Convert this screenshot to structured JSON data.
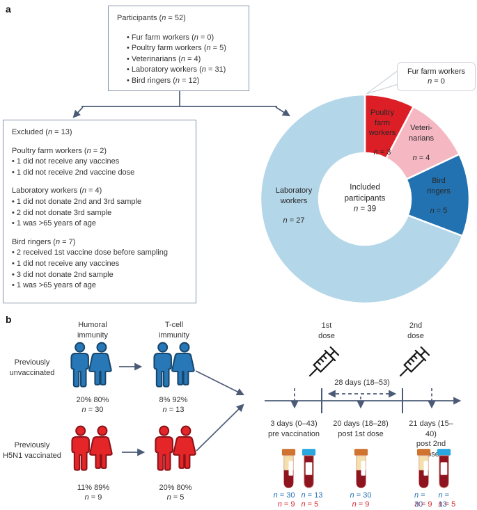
{
  "panel_a": {
    "label": "a",
    "participants_box": {
      "title": "Participants (n = 52)",
      "items": [
        "• Fur farm workers (n = 0)",
        "• Poultry farm workers (n = 5)",
        "• Veterinarians (n = 4)",
        "• Laboratory workers (n = 31)",
        "• Bird ringers (n = 12)"
      ]
    },
    "excluded_box": {
      "title": "Excluded (n = 13)",
      "groups": [
        {
          "heading": "Poultry farm workers (n = 2)",
          "bullets": [
            "• 1 did not receive any vaccines",
            "• 1 did not receive 2nd vaccine dose"
          ]
        },
        {
          "heading": "Laboratory workers (n = 4)",
          "bullets": [
            "• 1 did not donate 2nd and 3rd sample",
            "• 2 did not donate 3rd sample",
            "• 1 was >65 years of age"
          ]
        },
        {
          "heading": "Bird ringers (n = 7)",
          "bullets": [
            "• 2 received 1st vaccine dose before sampling",
            "• 1 did not receive any vaccines",
            "• 3 did not donate 2nd sample",
            "• 1 was >65 years of age"
          ]
        }
      ]
    }
  },
  "chart_data": {
    "type": "pie",
    "subtype": "donut",
    "title": "Included participants",
    "center_label": "Included\nparticipants\nn = 39",
    "total": 39,
    "direction": "clockwise",
    "start_angle_deg": 0,
    "slices": [
      {
        "label": "Poultry\nfarm\nworkers",
        "count_label": "n = 3",
        "value": 3,
        "color": "#dc1f26"
      },
      {
        "label": "Veteri-\nnarians",
        "count_label": "n = 4",
        "value": 4,
        "color": "#f5b8c3"
      },
      {
        "label": "Bird\nringers",
        "count_label": "n = 5",
        "value": 5,
        "color": "#2272b2"
      },
      {
        "label": "Laboratory\nworkers",
        "count_label": "n = 27",
        "value": 27,
        "color": "#b3d6e9"
      },
      {
        "label": "Fur farm workers",
        "count_label": "n = 0",
        "value": 0,
        "color": "#ffffff"
      }
    ]
  },
  "panel_b": {
    "label": "b",
    "col_headers": {
      "humoral": "Humoral\nimmunity",
      "tcell": "T-cell\nimmunity"
    },
    "rows": [
      {
        "row_label": "Previously\nunvaccinated",
        "color": "#2878b8",
        "humoral": {
          "pct": "20% 80%",
          "n": "n = 30"
        },
        "tcell": {
          "pct": "8% 92%",
          "n": "n = 13"
        }
      },
      {
        "row_label": "Previously\nH5N1 vaccinated",
        "color": "#e52629",
        "humoral": {
          "pct": "11% 89%",
          "n": "n = 9"
        },
        "tcell": {
          "pct": "20% 80%",
          "n": "n = 5"
        }
      }
    ],
    "timeline": {
      "dose1_label": "1st\ndose",
      "dose2_label": "2nd\ndose",
      "interval_label": "28 days (18–53)",
      "timepoints": [
        {
          "label": "3 days (0–43)\npre vaccination",
          "tubes": [
            "serum",
            "blood"
          ],
          "counts_unvaccinated": [
            "n = 30",
            "n = 13"
          ],
          "counts_vaccinated": [
            "n = 9",
            "n = 5"
          ]
        },
        {
          "label": "20 days (18–28)\npost 1st dose",
          "tubes": [
            "serum"
          ],
          "counts_unvaccinated": [
            "n = 30"
          ],
          "counts_vaccinated": [
            "n = 9"
          ]
        },
        {
          "label": "21 days (15–40)\npost 2nd dose",
          "tubes": [
            "serum",
            "blood"
          ],
          "counts_unvaccinated": [
            "n = 30",
            "n = 13"
          ],
          "counts_vaccinated": [
            "n = 9",
            "n = 5"
          ]
        }
      ]
    }
  },
  "colors": {
    "line_accent": "#4b5b77",
    "box_border": "#8494a8",
    "callout_border": "#cdd2d9",
    "count_blue": "#2171b5",
    "count_red": "#d62a31",
    "person_blue": "#2878b8",
    "person_red": "#e52629",
    "tube_cap_orange": "#cf7430",
    "tube_cap_blue": "#2aa7e0",
    "tube_blood_red": "#8e1420",
    "tube_serum_cream": "#f3e0ad"
  }
}
